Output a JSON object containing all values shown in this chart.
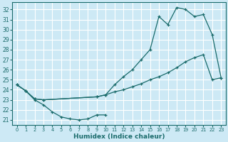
{
  "xlabel": "Humidex (Indice chaleur)",
  "bg_color": "#cde9f5",
  "grid_color": "#ffffff",
  "line_color": "#1a6b6b",
  "xlim": [
    -0.5,
    23.5
  ],
  "ylim": [
    20.5,
    32.7
  ],
  "xticks": [
    0,
    1,
    2,
    3,
    4,
    5,
    6,
    7,
    8,
    9,
    10,
    11,
    12,
    13,
    14,
    15,
    16,
    17,
    18,
    19,
    20,
    21,
    22,
    23
  ],
  "yticks": [
    21,
    22,
    23,
    24,
    25,
    26,
    27,
    28,
    29,
    30,
    31,
    32
  ],
  "curve_dip_x": [
    0,
    1,
    2,
    3,
    4,
    5,
    6,
    7,
    8,
    9,
    10
  ],
  "curve_dip_y": [
    24.5,
    23.9,
    23.0,
    22.5,
    21.8,
    21.3,
    21.1,
    21.0,
    21.1,
    21.5,
    21.5
  ],
  "curve_steep_x": [
    0,
    1,
    2,
    3,
    9,
    10,
    11,
    12,
    13,
    14,
    15,
    16,
    17,
    18,
    19,
    20,
    21,
    22,
    23
  ],
  "curve_steep_y": [
    24.5,
    23.9,
    23.1,
    23.0,
    23.3,
    23.5,
    24.5,
    25.3,
    26.0,
    27.0,
    28.0,
    31.3,
    30.5,
    32.2,
    32.0,
    31.3,
    31.5,
    29.5,
    25.2
  ],
  "curve_gentle_x": [
    0,
    1,
    2,
    3,
    9,
    10,
    11,
    12,
    13,
    14,
    15,
    16,
    17,
    18,
    19,
    20,
    21,
    22,
    23
  ],
  "curve_gentle_y": [
    24.5,
    23.9,
    23.1,
    23.0,
    23.3,
    23.5,
    23.8,
    24.0,
    24.3,
    24.6,
    25.0,
    25.3,
    25.7,
    26.2,
    26.8,
    27.2,
    27.5,
    25.0,
    25.2
  ]
}
